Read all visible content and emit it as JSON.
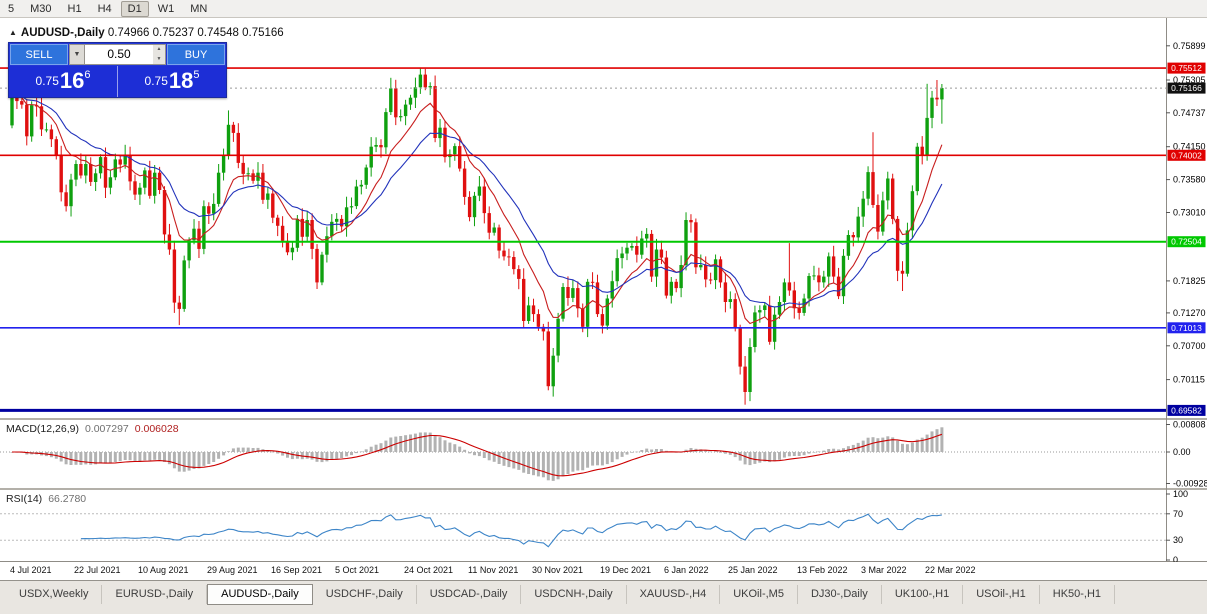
{
  "toolbar": {
    "timeframes": [
      {
        "label": "5",
        "active": false
      },
      {
        "label": "M30",
        "active": false
      },
      {
        "label": "H1",
        "active": false
      },
      {
        "label": "H4",
        "active": false
      },
      {
        "label": "D1",
        "active": true
      },
      {
        "label": "W1",
        "active": false
      },
      {
        "label": "MN",
        "active": false
      }
    ]
  },
  "chart": {
    "collapse_arrow": "▲",
    "symbol_period": "AUDUSD-,Daily",
    "ohlc_text": "0.74966 0.75237 0.74548 0.75166"
  },
  "trade_panel": {
    "sell_label": "SELL",
    "buy_label": "BUY",
    "volume": "0.50",
    "sell_price": {
      "prefix": "0.75",
      "big": "16",
      "sup": "6"
    },
    "buy_price": {
      "prefix": "0.75",
      "big": "18",
      "sup": "5"
    }
  },
  "indicators": {
    "macd": {
      "name": "MACD(12,26,9)",
      "value_main": "0.007297",
      "value_signal": "0.006028"
    },
    "rsi": {
      "name": "RSI(14)",
      "value": "66.2780"
    }
  },
  "chart_data": {
    "type": "candlestick",
    "symbol": "AUDUSD",
    "timeframe": "Daily",
    "candle_colors": {
      "up": "#0FA00F",
      "down": "#E01010"
    },
    "open_first": 0.7452,
    "closes": [
      0.7505,
      0.7494,
      0.7488,
      0.7433,
      0.7487,
      0.7485,
      0.7445,
      0.7445,
      0.7428,
      0.74,
      0.7336,
      0.7312,
      0.7358,
      0.7385,
      0.7365,
      0.7385,
      0.7354,
      0.7369,
      0.7397,
      0.7344,
      0.7362,
      0.7393,
      0.7384,
      0.74,
      0.7355,
      0.7332,
      0.7344,
      0.7374,
      0.733,
      0.737,
      0.734,
      0.7263,
      0.7237,
      0.7145,
      0.7134,
      0.7218,
      0.7253,
      0.7273,
      0.7238,
      0.7312,
      0.7299,
      0.7316,
      0.737,
      0.74,
      0.7453,
      0.7439,
      0.7387,
      0.7368,
      0.7369,
      0.7356,
      0.737,
      0.7323,
      0.7334,
      0.7292,
      0.7278,
      0.7252,
      0.7232,
      0.724,
      0.729,
      0.7259,
      0.7288,
      0.7238,
      0.718,
      0.7228,
      0.726,
      0.7285,
      0.729,
      0.7277,
      0.731,
      0.7312,
      0.7346,
      0.7349,
      0.7379,
      0.7415,
      0.7418,
      0.7414,
      0.7475,
      0.7516,
      0.7466,
      0.7468,
      0.7488,
      0.75,
      0.7518,
      0.754,
      0.7518,
      0.752,
      0.743,
      0.7448,
      0.7397,
      0.7402,
      0.7416,
      0.7377,
      0.7328,
      0.7293,
      0.733,
      0.7346,
      0.73,
      0.7266,
      0.7275,
      0.7235,
      0.7225,
      0.7224,
      0.7203,
      0.7186,
      0.7113,
      0.714,
      0.7125,
      0.7103,
      0.7095,
      0.7,
      0.7053,
      0.7117,
      0.7172,
      0.7153,
      0.717,
      0.7135,
      0.7103,
      0.7181,
      0.718,
      0.7125,
      0.7105,
      0.7152,
      0.7182,
      0.7222,
      0.723,
      0.724,
      0.7243,
      0.7228,
      0.7256,
      0.7264,
      0.719,
      0.7237,
      0.7223,
      0.7157,
      0.7181,
      0.717,
      0.721,
      0.7288,
      0.7284,
      0.7206,
      0.721,
      0.7185,
      0.7184,
      0.722,
      0.718,
      0.7146,
      0.7151,
      0.71,
      0.7034,
      0.699,
      0.7068,
      0.7128,
      0.7132,
      0.714,
      0.7077,
      0.7124,
      0.7146,
      0.718,
      0.7166,
      0.7135,
      0.7127,
      0.7152,
      0.7191,
      0.7192,
      0.718,
      0.719,
      0.7225,
      0.719,
      0.7156,
      0.7226,
      0.7262,
      0.7258,
      0.7294,
      0.7325,
      0.7371,
      0.7314,
      0.7268,
      0.7322,
      0.736,
      0.729,
      0.72,
      0.7195,
      0.727,
      0.7338,
      0.7415,
      0.74,
      0.7465,
      0.75,
      0.7497,
      0.75166
    ],
    "extreme_overrides": {
      "34": {
        "l": 0.7106
      },
      "44": {
        "h": 0.7478
      },
      "83": {
        "h": 0.7551
      },
      "109": {
        "l": 0.6993
      },
      "149": {
        "l": 0.6968
      },
      "158": {
        "h": 0.7248
      },
      "175": {
        "h": 0.744
      },
      "181": {
        "l": 0.7165
      },
      "186": {
        "h": 0.7524
      },
      "188": {
        "h": 0.75305
      },
      "189": {
        "h": 0.75237,
        "l": 0.74548
      }
    },
    "x_labels": [
      "4 Jul 2021",
      "22 Jul 2021",
      "10 Aug 2021",
      "29 Aug 2021",
      "16 Sep 2021",
      "5 Oct 2021",
      "24 Oct 2021",
      "11 Nov 2021",
      "30 Nov 2021",
      "19 Dec 2021",
      "6 Jan 2022",
      "25 Jan 2022",
      "13 Feb 2022",
      "3 Mar 2022",
      "22 Mar 2022"
    ],
    "x_label_indices": [
      0,
      13,
      26,
      40,
      53,
      66,
      80,
      93,
      106,
      120,
      133,
      146,
      160,
      173,
      186
    ],
    "moving_averages": [
      {
        "name": "fast-ma",
        "period": 10,
        "color": "#C81E1E"
      },
      {
        "name": "slow-ma",
        "period": 21,
        "color": "#2233BB"
      }
    ],
    "price_axis": {
      "range": {
        "top": 0.7638,
        "bottom": 0.6945
      },
      "plain_labels": [
        "0.75899",
        "0.75305",
        "0.74737",
        "0.74150",
        "0.73580",
        "0.73010",
        "0.71825",
        "0.71270",
        "0.70700",
        "0.70115"
      ],
      "current": {
        "text": "0.75166",
        "value": 0.75166,
        "color": "#101010"
      },
      "hlines": [
        {
          "text": "0.75512",
          "value": 0.75512,
          "color": "#E00000",
          "width": 1.6
        },
        {
          "text": "0.74002",
          "value": 0.74002,
          "color": "#E00000",
          "width": 1.6
        },
        {
          "text": "0.72504",
          "value": 0.72504,
          "color": "#00C800",
          "width": 2
        },
        {
          "text": "0.71013",
          "value": 0.71013,
          "color": "#2222EE",
          "width": 1.6
        },
        {
          "text": "0.69582",
          "value": 0.69582,
          "color": "#0000A0",
          "width": 3
        }
      ]
    },
    "macd": {
      "fast": 12,
      "slow": 26,
      "signal": 9,
      "range": {
        "top": 0.0088,
        "bottom": -0.01
      },
      "axis": [
        {
          "text": "0.00808",
          "value": 0.00808
        },
        {
          "text": "0.00",
          "value": 0
        },
        {
          "text": "-0.00928",
          "value": -0.00928
        }
      ],
      "histogram_color": "#B2B2B2",
      "signal_color": "#CC0000"
    },
    "rsi": {
      "period": 14,
      "color": "#3D85C8",
      "axis": [
        {
          "text": "100",
          "value": 100
        },
        {
          "text": "70",
          "value": 70
        },
        {
          "text": "30",
          "value": 30
        },
        {
          "text": "0",
          "value": 0
        }
      ],
      "dotted_levels": [
        70,
        30
      ]
    }
  },
  "tabs": {
    "items": [
      {
        "label": "USDX,Weekly",
        "active": false
      },
      {
        "label": "EURUSD-,Daily",
        "active": false
      },
      {
        "label": "AUDUSD-,Daily",
        "active": true
      },
      {
        "label": "USDCHF-,Daily",
        "active": false
      },
      {
        "label": "USDCAD-,Daily",
        "active": false
      },
      {
        "label": "USDCNH-,Daily",
        "active": false
      },
      {
        "label": "XAUUSD-,H4",
        "active": false
      },
      {
        "label": "UKOil-,M5",
        "active": false
      },
      {
        "label": "DJ30-,Daily",
        "active": false
      },
      {
        "label": "UK100-,H1",
        "active": false
      },
      {
        "label": "USOil-,H1",
        "active": false
      },
      {
        "label": "HK50-,H1",
        "active": false
      }
    ]
  }
}
